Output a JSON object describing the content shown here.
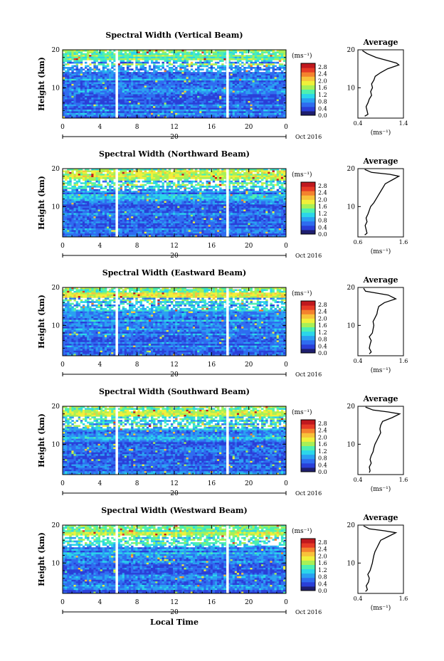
{
  "chart_data": {
    "type": "heatmap",
    "x_axis_label": "Local Time",
    "date_label": "Oct 2016",
    "day_label": "20",
    "colorbar": {
      "unit_label": "(ms⁻¹)",
      "ticks": [
        "0.0",
        "0.4",
        "0.8",
        "1.2",
        "1.6",
        "2.0",
        "2.4",
        "2.8"
      ],
      "range": [
        0,
        3.0
      ],
      "colors": [
        "#1e1e6e",
        "#2a3fd8",
        "#2f6cf0",
        "#2aa0f2",
        "#2bd6ea",
        "#4ef0b0",
        "#a8f056",
        "#f0f03a",
        "#f8c23a",
        "#f4822e",
        "#e63a26",
        "#c0181e"
      ]
    },
    "x_ticks": [
      "0",
      "4",
      "8",
      "12",
      "16",
      "20",
      "0"
    ],
    "x_range": [
      0,
      24
    ],
    "y_label": "Height (km)",
    "y_ticks": [
      "20",
      "10"
    ],
    "y_range": [
      2,
      20
    ],
    "avg_title": "Average",
    "avg_unit_label": "(ms⁻¹)",
    "panels": [
      {
        "title": "Spectral Width (Vertical Beam)",
        "avg_x_ticks": [
          "0.4",
          "1.4"
        ],
        "avg_xlim": [
          0.4,
          1.4
        ],
        "avg_profile": [
          [
            2.5,
            0.55
          ],
          [
            3,
            0.62
          ],
          [
            4,
            0.6
          ],
          [
            5,
            0.58
          ],
          [
            6,
            0.62
          ],
          [
            7,
            0.65
          ],
          [
            8,
            0.7
          ],
          [
            9,
            0.68
          ],
          [
            10,
            0.72
          ],
          [
            11,
            0.7
          ],
          [
            12,
            0.75
          ],
          [
            13,
            0.78
          ],
          [
            14,
            0.9
          ],
          [
            15,
            1.05
          ],
          [
            16,
            1.3
          ],
          [
            16.5,
            1.25
          ],
          [
            17,
            1.1
          ],
          [
            18,
            0.8
          ],
          [
            19,
            0.6
          ],
          [
            19.8,
            0.5
          ]
        ]
      },
      {
        "title": "Spectral Width (Northward Beam)",
        "avg_x_ticks": [
          "0.6",
          "1.6"
        ],
        "avg_xlim": [
          0.6,
          1.6
        ],
        "avg_profile": [
          [
            2.5,
            0.75
          ],
          [
            3,
            0.8
          ],
          [
            4,
            0.78
          ],
          [
            5,
            0.76
          ],
          [
            6,
            0.8
          ],
          [
            7,
            0.78
          ],
          [
            8,
            0.82
          ],
          [
            9,
            0.85
          ],
          [
            10,
            0.88
          ],
          [
            11,
            0.95
          ],
          [
            12,
            1.0
          ],
          [
            13,
            1.05
          ],
          [
            14,
            1.1
          ],
          [
            15,
            1.15
          ],
          [
            16,
            1.2
          ],
          [
            17,
            1.35
          ],
          [
            18,
            1.5
          ],
          [
            18.5,
            1.3
          ],
          [
            19,
            0.9
          ],
          [
            19.8,
            0.75
          ]
        ]
      },
      {
        "title": "Spectral Width (Eastward Beam)",
        "avg_x_ticks": [
          "0.4",
          "1.6"
        ],
        "avg_xlim": [
          0.4,
          1.6
        ],
        "avg_profile": [
          [
            2.5,
            0.7
          ],
          [
            3,
            0.75
          ],
          [
            4,
            0.7
          ],
          [
            5,
            0.72
          ],
          [
            6,
            0.75
          ],
          [
            7,
            0.7
          ],
          [
            8,
            0.78
          ],
          [
            9,
            0.8
          ],
          [
            10,
            0.82
          ],
          [
            11,
            0.8
          ],
          [
            12,
            0.85
          ],
          [
            13,
            0.9
          ],
          [
            14,
            0.92
          ],
          [
            15,
            0.95
          ],
          [
            16,
            1.1
          ],
          [
            17,
            1.4
          ],
          [
            18,
            1.2
          ],
          [
            18.5,
            0.9
          ],
          [
            19,
            0.6
          ],
          [
            19.8,
            0.55
          ]
        ]
      },
      {
        "title": "Spectral Width (Southward Beam)",
        "avg_x_ticks": [
          "0.4",
          "1.6"
        ],
        "avg_xlim": [
          0.4,
          1.6
        ],
        "avg_profile": [
          [
            2.5,
            0.7
          ],
          [
            3,
            0.72
          ],
          [
            4,
            0.7
          ],
          [
            5,
            0.75
          ],
          [
            6,
            0.72
          ],
          [
            7,
            0.75
          ],
          [
            8,
            0.8
          ],
          [
            9,
            0.82
          ],
          [
            10,
            0.85
          ],
          [
            11,
            0.9
          ],
          [
            12,
            0.95
          ],
          [
            13,
            1.0
          ],
          [
            14,
            0.98
          ],
          [
            15,
            1.0
          ],
          [
            16,
            1.05
          ],
          [
            17,
            1.3
          ],
          [
            18,
            1.5
          ],
          [
            18.5,
            1.2
          ],
          [
            19,
            0.8
          ],
          [
            19.8,
            0.6
          ]
        ]
      },
      {
        "title": "Spectral Width (Westward Beam)",
        "avg_x_ticks": [
          "0.4",
          "1.6"
        ],
        "avg_xlim": [
          0.4,
          1.6
        ],
        "avg_profile": [
          [
            2.5,
            0.6
          ],
          [
            3,
            0.65
          ],
          [
            4,
            0.62
          ],
          [
            5,
            0.68
          ],
          [
            6,
            0.7
          ],
          [
            7,
            0.66
          ],
          [
            8,
            0.72
          ],
          [
            9,
            0.75
          ],
          [
            10,
            0.78
          ],
          [
            11,
            0.8
          ],
          [
            12,
            0.82
          ],
          [
            13,
            0.85
          ],
          [
            14,
            0.9
          ],
          [
            15,
            0.95
          ],
          [
            16,
            1.0
          ],
          [
            17,
            1.2
          ],
          [
            18,
            1.4
          ],
          [
            18.5,
            1.1
          ],
          [
            19,
            0.7
          ],
          [
            19.8,
            0.55
          ]
        ]
      }
    ]
  }
}
